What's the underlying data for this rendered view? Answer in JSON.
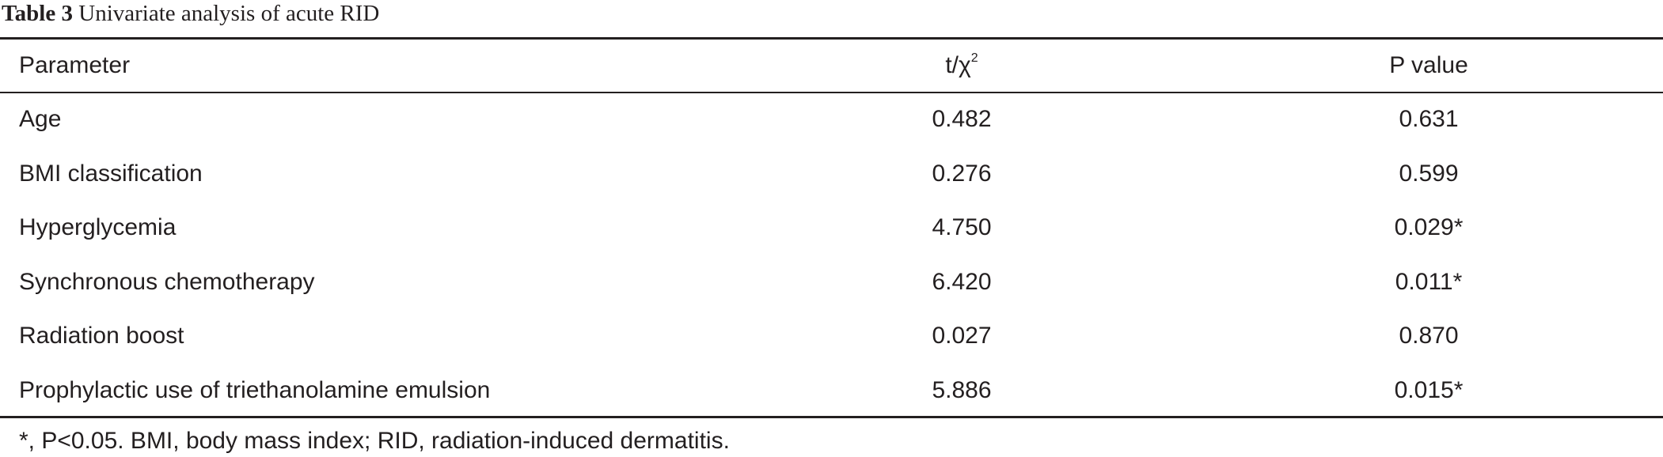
{
  "title": {
    "label": "Table 3",
    "text": "Univariate analysis of acute RID"
  },
  "table": {
    "header": [
      "Parameter",
      {
        "text": "t/χ",
        "superscript": "2"
      },
      "P value"
    ],
    "rows": [
      [
        "Age",
        "0.482",
        "0.631"
      ],
      [
        "BMI classification",
        "0.276",
        "0.599"
      ],
      [
        "Hyperglycemia",
        "4.750",
        "0.029*"
      ],
      [
        "Synchronous chemotherapy",
        "6.420",
        "0.011*"
      ],
      [
        "Radiation boost",
        "0.027",
        "0.870"
      ],
      [
        "Prophylactic use of triethanolamine emulsion",
        "5.886",
        "0.015*"
      ]
    ]
  },
  "footnote": "*, P<0.05. BMI, body mass index; RID, radiation-induced dermatitis."
}
